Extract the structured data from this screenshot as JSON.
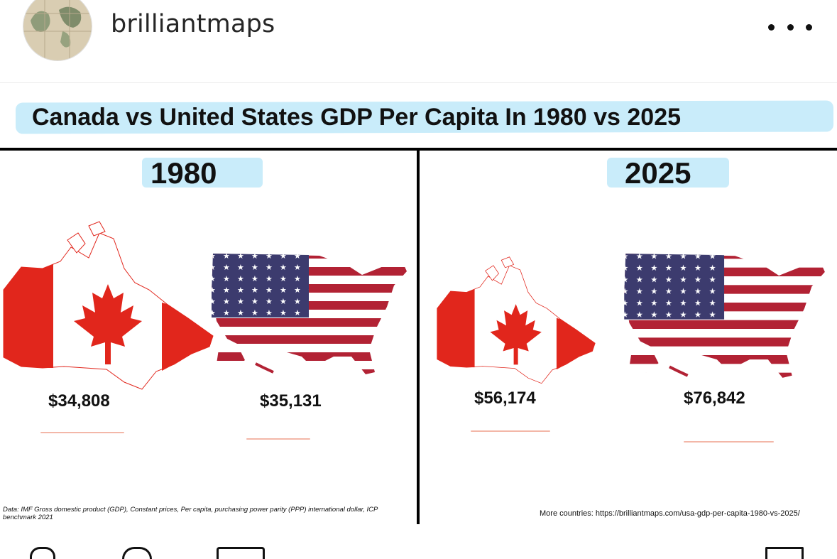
{
  "post": {
    "username": "brilliantmaps",
    "avatar_icon": "world-map-avatar-icon",
    "more_icon": "more-options-icon"
  },
  "infographic": {
    "title": "Canada vs United States GDP Per Capita In 1980 vs 2025",
    "highlight_color": "#c9ecfa",
    "panels": [
      {
        "year": "1980",
        "canada_value": "$34,808",
        "usa_value": "$35,131"
      },
      {
        "year": "2025",
        "canada_value": "$56,174",
        "usa_value": "$76,842"
      }
    ],
    "source_note": "Data: IMF Gross domestic product (GDP), Constant prices, Per capita, purchasing power parity (PPP) international dollar, ICP benchmark 2021",
    "more_note": "More countries: https://brilliantmaps.com/usa-gdp-per-capita-1980-vs-2025/",
    "colors": {
      "canada_red": "#e1261c",
      "usa_red": "#b22234",
      "usa_blue": "#3c3b6e"
    }
  },
  "actions": [
    "like-icon",
    "comment-icon",
    "share-icon",
    "save-icon"
  ]
}
